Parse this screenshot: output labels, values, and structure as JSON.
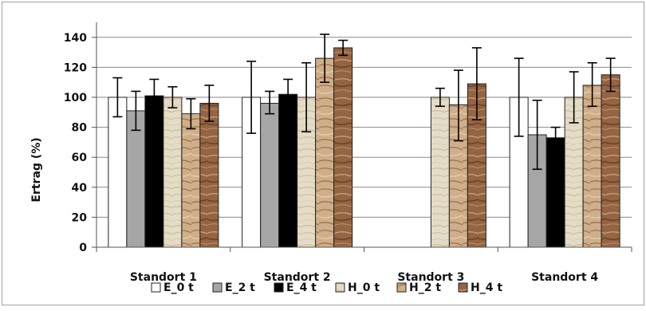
{
  "chart_data": {
    "type": "bar",
    "title": "",
    "xlabel": "",
    "ylabel": "Ertrag (%)",
    "ylim": [
      0,
      150
    ],
    "yticks": [
      0,
      20,
      40,
      60,
      80,
      100,
      120,
      140
    ],
    "grid": "horizontal major lines",
    "legend_position": "bottom",
    "categories": [
      "Standort 1",
      "Standort 2",
      "Standort 3",
      "Standort 4"
    ],
    "series": [
      {
        "name": "E_0 t",
        "color": "#ffffff",
        "fill": "solid",
        "values": [
          100,
          100,
          null,
          100
        ],
        "error_low": [
          87,
          76,
          null,
          74
        ],
        "error_high": [
          113,
          124,
          null,
          126
        ]
      },
      {
        "name": "E_2 t",
        "color": "#a6a6a6",
        "fill": "solid",
        "values": [
          91,
          96,
          null,
          75
        ],
        "error_low": [
          78,
          89,
          null,
          52
        ],
        "error_high": [
          104,
          104,
          null,
          98
        ]
      },
      {
        "name": "E_4 t",
        "color": "#000000",
        "fill": "solid",
        "values": [
          101,
          102,
          null,
          73
        ],
        "error_low": [
          91,
          92,
          null,
          66
        ],
        "error_high": [
          112,
          112,
          null,
          80
        ]
      },
      {
        "name": "H_0 t",
        "color": "#e4dcc6",
        "fill": "texture",
        "values": [
          100,
          100,
          100,
          100
        ],
        "error_low": [
          93,
          77,
          94,
          83
        ],
        "error_high": [
          107,
          123,
          106,
          117
        ]
      },
      {
        "name": "H_2 t",
        "color": "#c7a07a",
        "fill": "texture",
        "values": [
          89,
          126,
          95,
          108
        ],
        "error_low": [
          79,
          110,
          71,
          94
        ],
        "error_high": [
          99,
          142,
          118,
          123
        ]
      },
      {
        "name": "H_4 t",
        "color": "#946443",
        "fill": "texture",
        "values": [
          96,
          133,
          109,
          115
        ],
        "error_low": [
          84,
          128,
          85,
          104
        ],
        "error_high": [
          108,
          138,
          133,
          126
        ]
      }
    ]
  }
}
